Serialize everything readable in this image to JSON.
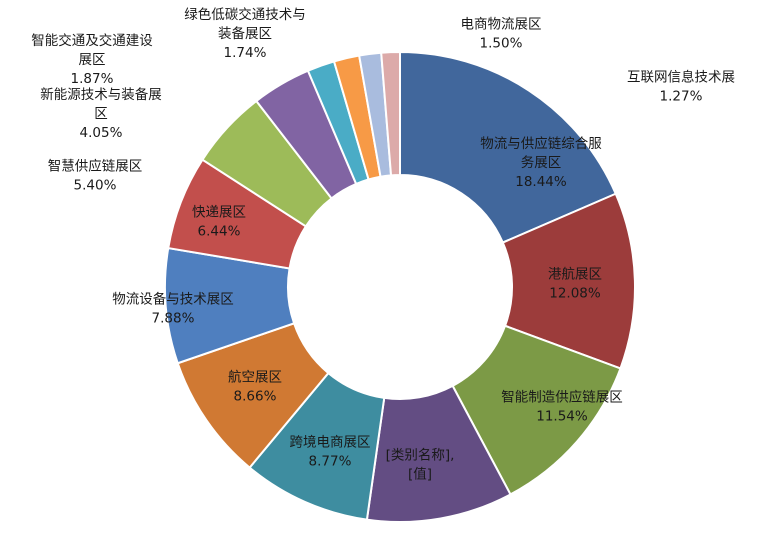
{
  "chart_data": {
    "type": "pie",
    "variant": "donut",
    "title": "",
    "slices": [
      {
        "label": [
          "物流与供应链综合服",
          "务展区"
        ],
        "value_label": "18.44%",
        "value": 18.44,
        "color": "#41679c"
      },
      {
        "label": [
          "港航展区"
        ],
        "value_label": "12.08%",
        "value": 12.08,
        "color": "#9c3c3b"
      },
      {
        "label": [
          "智能制造供应链展区"
        ],
        "value_label": "11.54%",
        "value": 11.54,
        "color": "#7c9a46"
      },
      {
        "label": [
          "[类别名称],"
        ],
        "value_label": "[值]",
        "value": 10.0,
        "color": "#634d83"
      },
      {
        "label": [
          "跨境电商展区"
        ],
        "value_label": "8.77%",
        "value": 8.77,
        "color": "#3e8da0"
      },
      {
        "label": [
          "航空展区"
        ],
        "value_label": "8.66%",
        "value": 8.66,
        "color": "#d07933"
      },
      {
        "label": [
          "物流设备与技术展区"
        ],
        "value_label": "7.88%",
        "value": 7.88,
        "color": "#4f7fbf"
      },
      {
        "label": [
          "快递展区"
        ],
        "value_label": "6.44%",
        "value": 6.44,
        "color": "#c24f4c"
      },
      {
        "label": [
          "智慧供应链展区"
        ],
        "value_label": "5.40%",
        "value": 5.4,
        "color": "#9dbb59"
      },
      {
        "label": [
          "新能源技术与装备展",
          "区"
        ],
        "value_label": "4.05%",
        "value": 4.05,
        "color": "#8164a3"
      },
      {
        "label": [
          "智能交通及交通建设",
          "展区"
        ],
        "value_label": "1.87%",
        "value": 1.87,
        "color": "#4aacc6"
      },
      {
        "label": [
          "绿色低碳交通技术与",
          "装备展区"
        ],
        "value_label": "1.74%",
        "value": 1.74,
        "color": "#f79a46"
      },
      {
        "label": [
          "电商物流展区"
        ],
        "value_label": "1.50%",
        "value": 1.5,
        "color": "#a9bcde"
      },
      {
        "label": [
          "互联网信息技术展"
        ],
        "value_label": "1.27%",
        "value": 1.27,
        "color": "#dcaaa9"
      }
    ]
  }
}
